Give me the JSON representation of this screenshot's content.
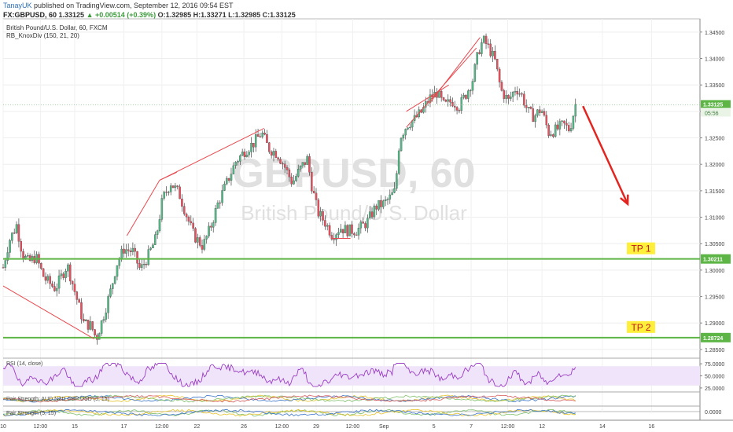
{
  "header": {
    "author": "TanayUK",
    "published": "published on TradingView.com, September 12, 2016 09:54 EST",
    "symbol": "FX:GBPUSD, 60",
    "last": "1.33125",
    "change": "▲ +0.00514 (+0.39%)",
    "ohlc": "O:1.32985 H:1.33271 L:1.32985 C:1.33125"
  },
  "colors": {
    "up_candle": "#53b987",
    "down_candle": "#eb4d5c",
    "wick": "#444444",
    "horizontal_line": "#5cb545",
    "trend_line": "#e8494f",
    "arrow": "#e3241f",
    "tp_label_bg": "#ffef3a",
    "tp_label_text": "#c0181e",
    "rsi_line": "#9b3ec4",
    "rsi_band": "#efe4fa",
    "price_label_bg": "#5cb545",
    "watermark": "#dddddd"
  },
  "chart_data": {
    "type": "candlestick",
    "title": "British Pound/U.S. Dollar, 60, FXCM",
    "indicator_label": "RB_KnoxDiv (150, 21, 20)",
    "watermark_symbol": "GBPUSD, 60",
    "watermark_name": "British Pound/U.S. Dollar",
    "ylim": [
      1.2835,
      1.3475
    ],
    "y_ticks": [
      1.345,
      1.34,
      1.335,
      1.33,
      1.325,
      1.32,
      1.315,
      1.31,
      1.305,
      1.3,
      1.295,
      1.29,
      1.285
    ],
    "y_tick_labels": [
      "1.34500",
      "1.34000",
      "1.33500",
      "1.33000",
      "1.32500",
      "1.32000",
      "1.31500",
      "1.31000",
      "1.30500",
      "1.30000",
      "1.29500",
      "1.29000",
      "1.28500"
    ],
    "x_tick_labels": [
      "10",
      "12:00",
      "15",
      "17",
      "12:00",
      "22",
      "26",
      "12:00",
      "29",
      "12:00",
      "Sep",
      "5",
      "7",
      "12:00",
      "12",
      "14",
      "16"
    ],
    "x_tick_hours": [
      0,
      50,
      96,
      162,
      213,
      260,
      323,
      374,
      420,
      469,
      511,
      578,
      628,
      677,
      723,
      804,
      870
    ],
    "x_hours_range": [
      0,
      935
    ],
    "current_price": "1.33125",
    "countdown": "05:56",
    "price_path": [
      [
        0,
        1.3005
      ],
      [
        8,
        1.3055
      ],
      [
        18,
        1.3085
      ],
      [
        26,
        1.303
      ],
      [
        34,
        1.3015
      ],
      [
        44,
        1.3025
      ],
      [
        55,
        1.2985
      ],
      [
        70,
        1.2965
      ],
      [
        86,
        1.301
      ],
      [
        96,
        1.296
      ],
      [
        108,
        1.29
      ],
      [
        118,
        1.2895
      ],
      [
        125,
        1.287
      ],
      [
        136,
        1.292
      ],
      [
        145,
        1.2965
      ],
      [
        152,
        1.301
      ],
      [
        162,
        1.304
      ],
      [
        174,
        1.3035
      ],
      [
        184,
        1.3
      ],
      [
        194,
        1.3025
      ],
      [
        205,
        1.306
      ],
      [
        214,
        1.3135
      ],
      [
        225,
        1.3165
      ],
      [
        236,
        1.3145
      ],
      [
        247,
        1.31
      ],
      [
        256,
        1.3065
      ],
      [
        268,
        1.3045
      ],
      [
        278,
        1.308
      ],
      [
        288,
        1.3125
      ],
      [
        300,
        1.3165
      ],
      [
        312,
        1.3205
      ],
      [
        324,
        1.3225
      ],
      [
        336,
        1.324
      ],
      [
        347,
        1.326
      ],
      [
        356,
        1.323
      ],
      [
        368,
        1.322
      ],
      [
        378,
        1.3195
      ],
      [
        388,
        1.3165
      ],
      [
        398,
        1.319
      ],
      [
        408,
        1.321
      ],
      [
        414,
        1.316
      ],
      [
        422,
        1.311
      ],
      [
        432,
        1.309
      ],
      [
        442,
        1.3065
      ],
      [
        452,
        1.308
      ],
      [
        462,
        1.3075
      ],
      [
        474,
        1.3075
      ],
      [
        488,
        1.309
      ],
      [
        500,
        1.312
      ],
      [
        510,
        1.3125
      ],
      [
        518,
        1.3135
      ],
      [
        526,
        1.315
      ],
      [
        532,
        1.325
      ],
      [
        542,
        1.3275
      ],
      [
        552,
        1.3285
      ],
      [
        562,
        1.33
      ],
      [
        572,
        1.3325
      ],
      [
        582,
        1.3335
      ],
      [
        592,
        1.331
      ],
      [
        602,
        1.332
      ],
      [
        612,
        1.331
      ],
      [
        622,
        1.3335
      ],
      [
        630,
        1.336
      ],
      [
        638,
        1.3415
      ],
      [
        644,
        1.3435
      ],
      [
        652,
        1.342
      ],
      [
        660,
        1.3395
      ],
      [
        668,
        1.334
      ],
      [
        678,
        1.332
      ],
      [
        688,
        1.3345
      ],
      [
        696,
        1.333
      ],
      [
        704,
        1.33
      ],
      [
        712,
        1.329
      ],
      [
        722,
        1.3305
      ],
      [
        732,
        1.326
      ],
      [
        742,
        1.3265
      ],
      [
        752,
        1.3275
      ],
      [
        760,
        1.3265
      ],
      [
        766,
        1.33
      ],
      [
        768,
        1.3313
      ]
    ],
    "trend_lines": [
      {
        "from": [
          0,
          1.297
        ],
        "to": [
          122,
          1.287
        ]
      },
      {
        "from": [
          166,
          1.3065
        ],
        "to": [
          210,
          1.317
        ]
      },
      {
        "from": [
          210,
          1.317
        ],
        "to": [
          233,
          1.3185
        ]
      },
      {
        "from": [
          210,
          1.317
        ],
        "to": [
          350,
          1.3268
        ]
      },
      {
        "from": [
          441,
          1.306
        ],
        "to": [
          466,
          1.306
        ]
      },
      {
        "from": [
          541,
          1.33
        ],
        "to": [
          598,
          1.335
        ]
      },
      {
        "from": [
          541,
          1.327
        ],
        "to": [
          635,
          1.342
        ]
      },
      {
        "from": [
          572,
          1.3315
        ],
        "to": [
          640,
          1.344
        ]
      }
    ],
    "horizontal_levels": [
      {
        "value": 1.30211,
        "label": "1.30211",
        "tag": "TP 1"
      },
      {
        "value": 1.28724,
        "label": "1.28724",
        "tag": "TP 2"
      }
    ],
    "arrow": {
      "from": [
        778,
        1.331
      ],
      "to": [
        838,
        1.3125
      ]
    },
    "rsi": {
      "label": "RSI (14, close)",
      "ylim": [
        20,
        85
      ],
      "ticks": [
        75,
        50,
        25
      ],
      "tick_labels": [
        "75.0000",
        "50.0000",
        "25.0000"
      ],
      "band": [
        30,
        70
      ]
    },
    "pair_strength_1": {
      "label": "Pair Strength: AUD NZD GBP USD (5, 15)"
    },
    "pair_strength_2": {
      "label": "Pair Strength (5, 15)",
      "tick_label": "0.0000"
    }
  }
}
